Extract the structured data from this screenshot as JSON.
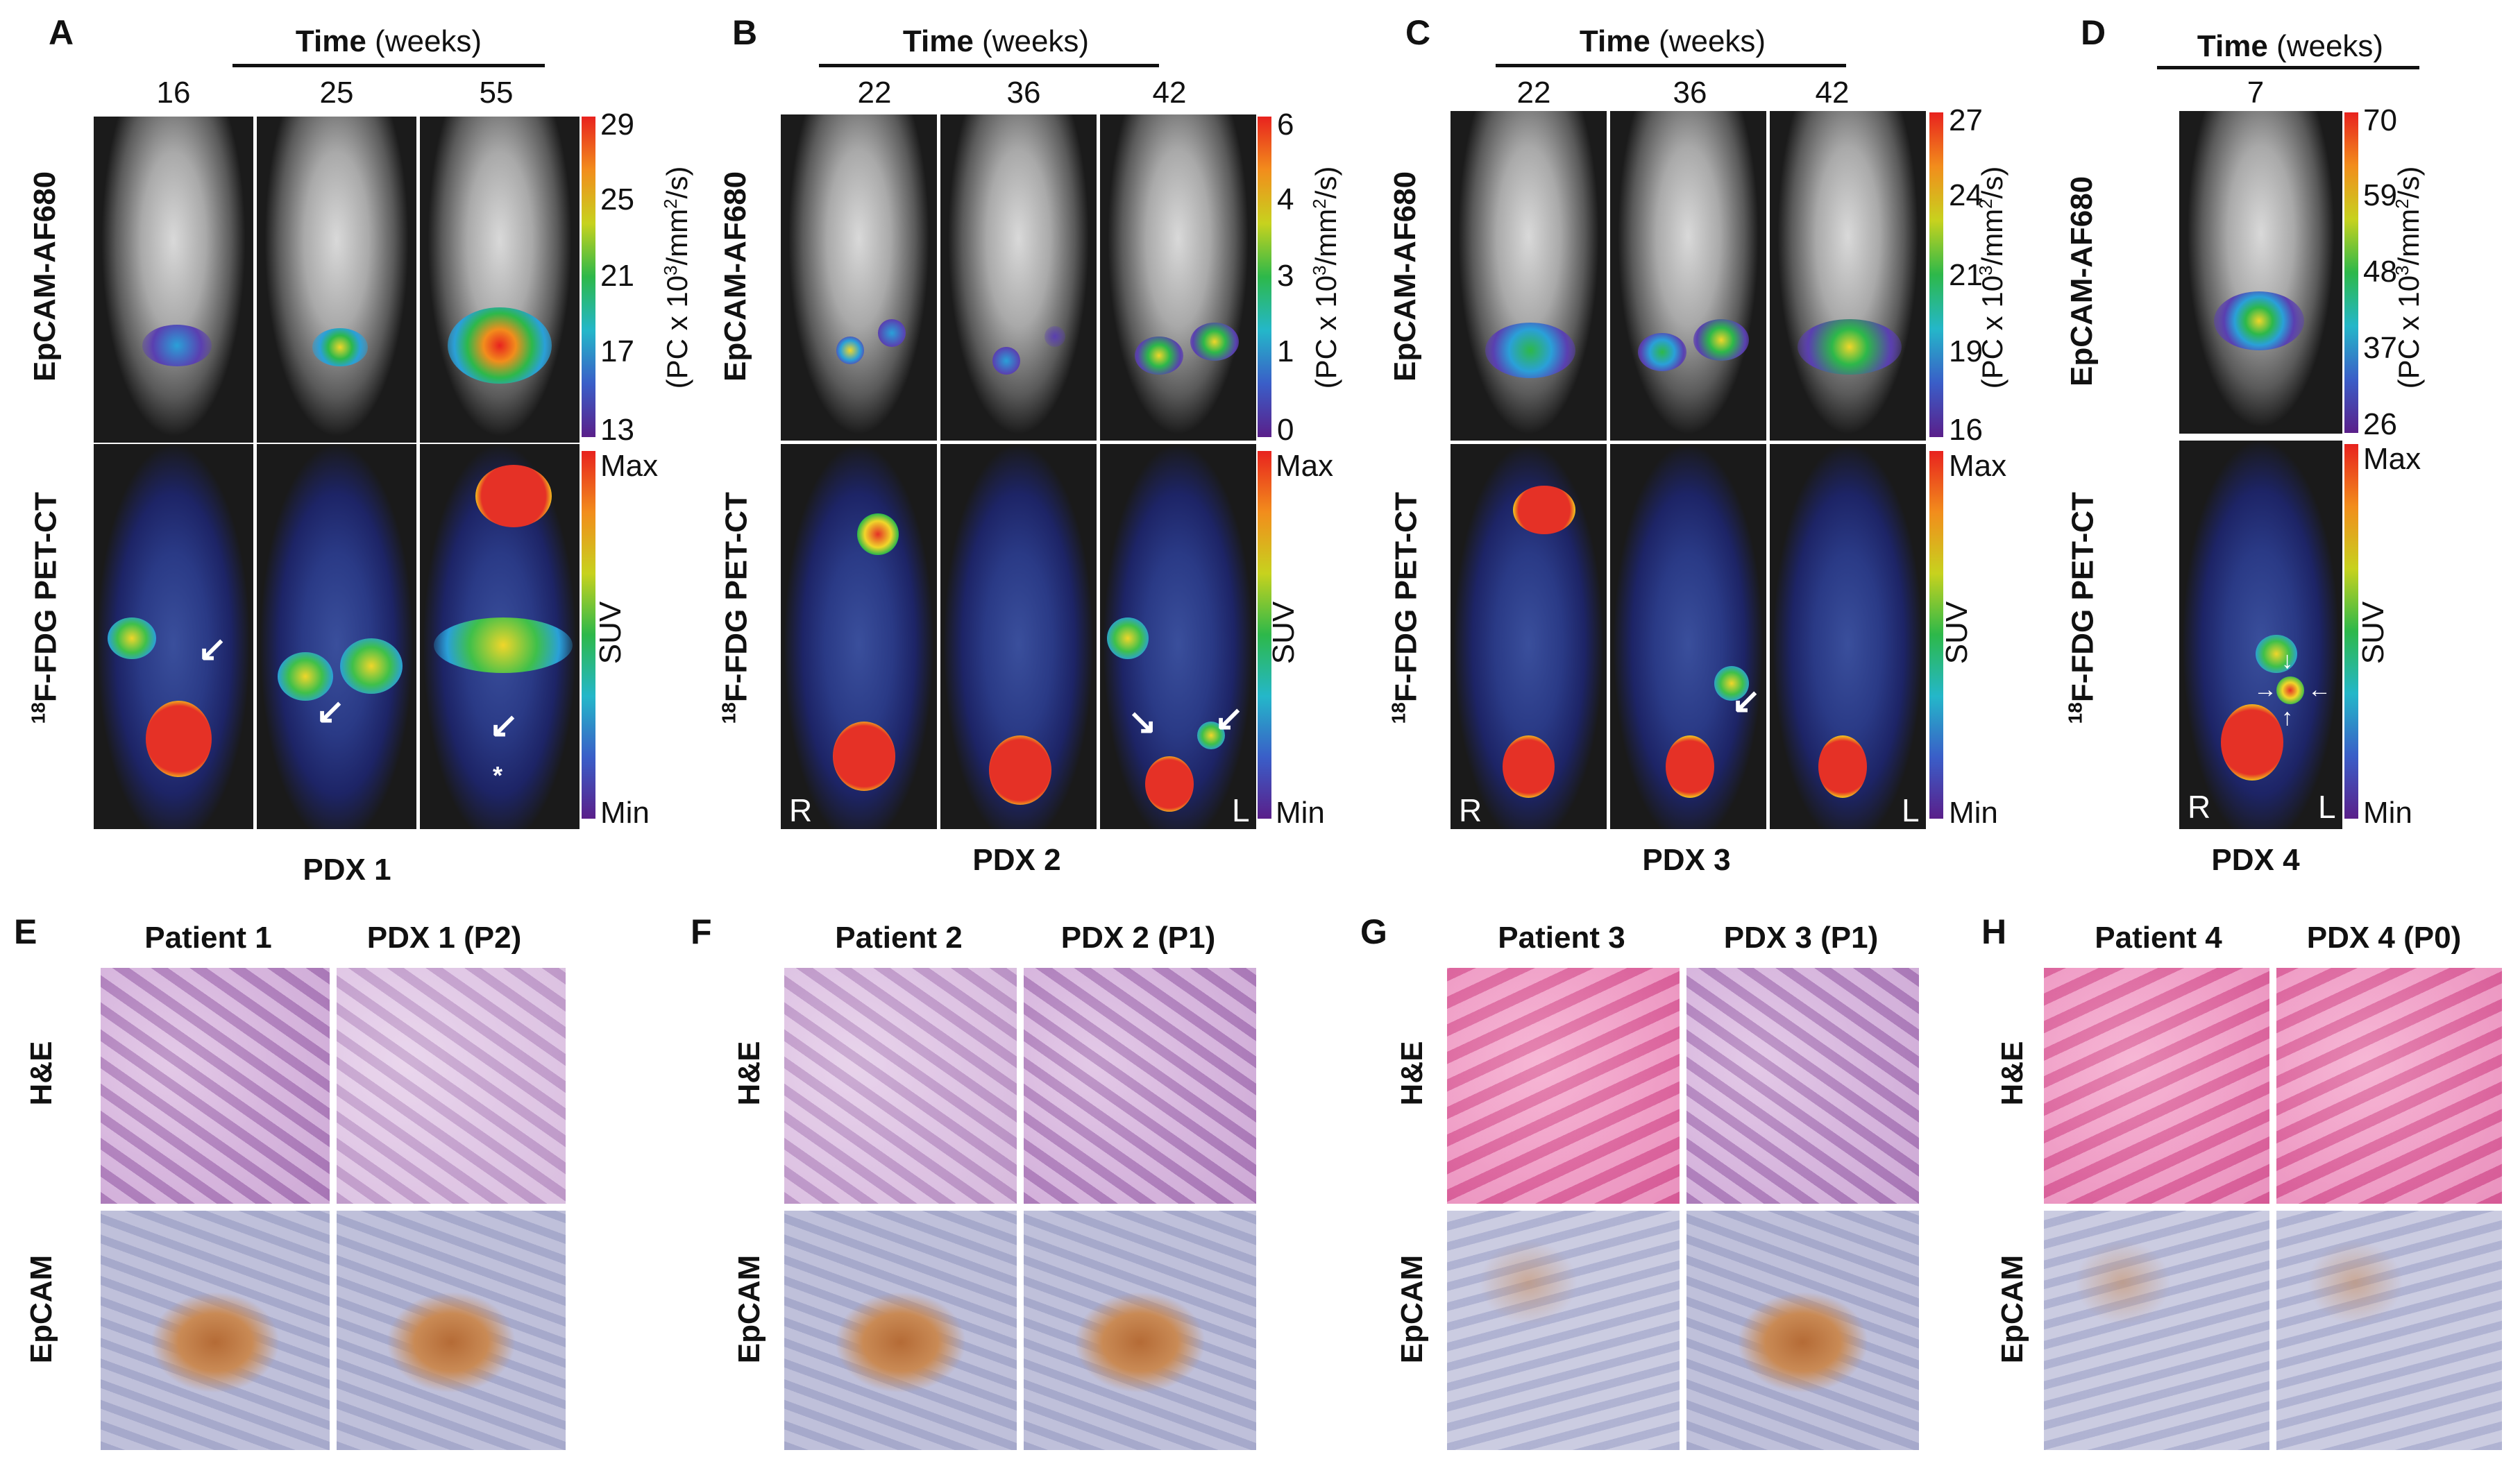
{
  "panels": {
    "A": {
      "letter": "A",
      "time_label": "Time",
      "time_unit": "(weeks)",
      "weeks": [
        "16",
        "25",
        "55"
      ],
      "fl_ticks": [
        "29",
        "25",
        "21",
        "17",
        "13"
      ],
      "pet_max": "Max",
      "pet_min": "Min",
      "suv": "SUV",
      "pdx": "PDX 1"
    },
    "B": {
      "letter": "B",
      "time_label": "Time",
      "time_unit": "(weeks)",
      "weeks": [
        "22",
        "36",
        "42"
      ],
      "fl_ticks": [
        "6",
        "4",
        "3",
        "1",
        "0"
      ],
      "pet_max": "Max",
      "pet_min": "Min",
      "suv": "SUV",
      "pdx": "PDX 2",
      "r": "R",
      "l": "L"
    },
    "C": {
      "letter": "C",
      "time_label": "Time",
      "time_unit": "(weeks)",
      "weeks": [
        "22",
        "36",
        "42"
      ],
      "fl_ticks": [
        "27",
        "24",
        "21",
        "19",
        "16"
      ],
      "pet_max": "Max",
      "pet_min": "Min",
      "suv": "SUV",
      "pdx": "PDX 3",
      "r": "R",
      "l": "L"
    },
    "D": {
      "letter": "D",
      "time_label": "Time",
      "time_unit": "(weeks)",
      "weeks": [
        "7"
      ],
      "fl_ticks": [
        "70",
        "59",
        "48",
        "37",
        "26"
      ],
      "pet_max": "Max",
      "pet_min": "Min",
      "suv": "SUV",
      "pdx": "PDX 4",
      "r": "R",
      "l": "L"
    }
  },
  "row_labels": {
    "fl": "EpCAM-AF680",
    "pet_sup": "18",
    "pet": "F-FDG  PET-CT"
  },
  "cb_unit": {
    "pre": "(PC x 10",
    "sup1": "3",
    "mid": "/mm",
    "sup2": "2",
    "post": "/s)"
  },
  "asterisk": "*",
  "histology": {
    "E": {
      "letter": "E",
      "patient": "Patient 1",
      "pdx": "PDX 1 (P2)"
    },
    "F": {
      "letter": "F",
      "patient": "Patient 2",
      "pdx": "PDX 2 (P1)"
    },
    "G": {
      "letter": "G",
      "patient": "Patient 3",
      "pdx": "PDX 3 (P1)"
    },
    "H": {
      "letter": "H",
      "patient": "Patient 4",
      "pdx": "PDX 4 (P0)"
    },
    "he_label": "H&E",
    "epcam_label": "EpCAM"
  }
}
